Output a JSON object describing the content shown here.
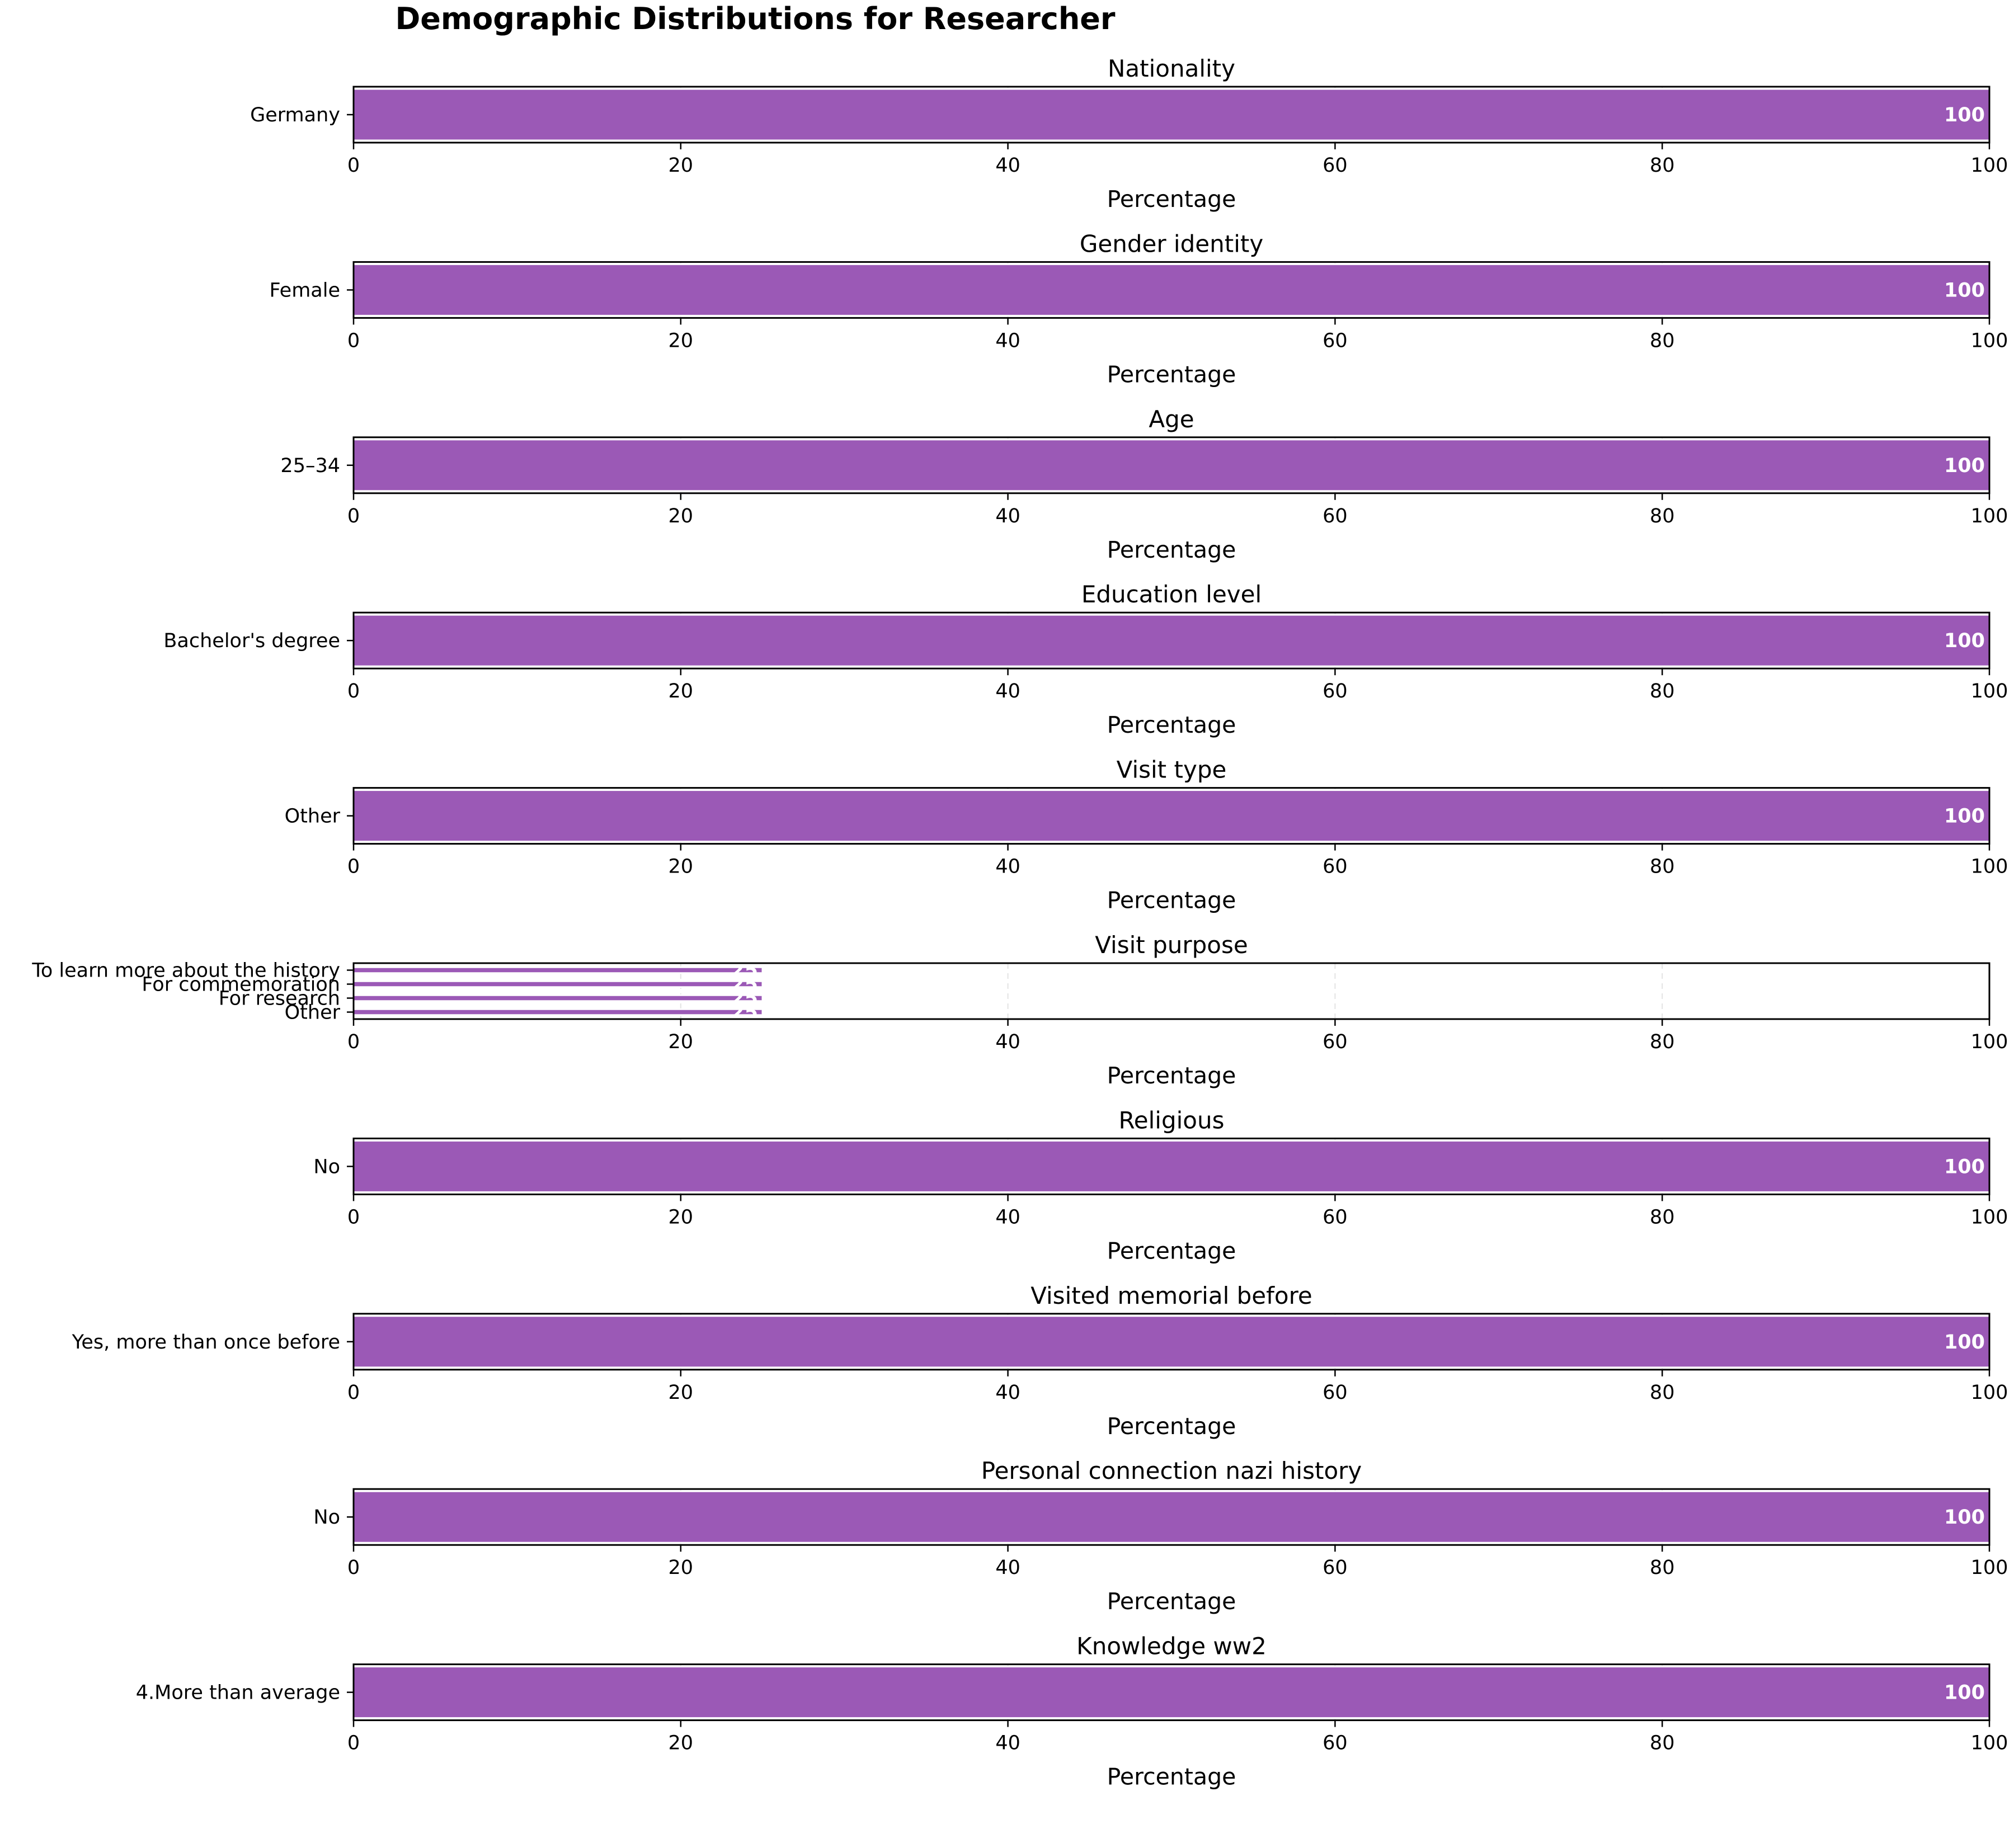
{
  "figure_title": "Demographic Distributions for Researcher",
  "colors": {
    "bar": "#9b59b6",
    "bar_label": "#ffffff",
    "grid": "#e3e3e3",
    "axis": "#000000"
  },
  "chart_data": [
    {
      "type": "bar",
      "orientation": "horizontal",
      "title": "Nationality",
      "xlabel": "Percentage",
      "categories": [
        "Germany"
      ],
      "values": [
        100
      ],
      "xlim": [
        0,
        100
      ],
      "xticks": [
        0,
        20,
        40,
        60,
        80,
        100
      ],
      "grid": "x, dashed"
    },
    {
      "type": "bar",
      "orientation": "horizontal",
      "title": "Gender identity",
      "xlabel": "Percentage",
      "categories": [
        "Female"
      ],
      "values": [
        100
      ],
      "xlim": [
        0,
        100
      ],
      "xticks": [
        0,
        20,
        40,
        60,
        80,
        100
      ],
      "grid": "x, dashed"
    },
    {
      "type": "bar",
      "orientation": "horizontal",
      "title": "Age",
      "xlabel": "Percentage",
      "categories": [
        "25–34"
      ],
      "values": [
        100
      ],
      "xlim": [
        0,
        100
      ],
      "xticks": [
        0,
        20,
        40,
        60,
        80,
        100
      ],
      "grid": "x, dashed"
    },
    {
      "type": "bar",
      "orientation": "horizontal",
      "title": "Education level",
      "xlabel": "Percentage",
      "categories": [
        "Bachelor's degree"
      ],
      "values": [
        100
      ],
      "xlim": [
        0,
        100
      ],
      "xticks": [
        0,
        20,
        40,
        60,
        80,
        100
      ],
      "grid": "x, dashed"
    },
    {
      "type": "bar",
      "orientation": "horizontal",
      "title": "Visit type",
      "xlabel": "Percentage",
      "categories": [
        "Other"
      ],
      "values": [
        100
      ],
      "xlim": [
        0,
        100
      ],
      "xticks": [
        0,
        20,
        40,
        60,
        80,
        100
      ],
      "grid": "x, dashed"
    },
    {
      "type": "bar",
      "orientation": "horizontal",
      "title": "Visit purpose",
      "xlabel": "Percentage",
      "categories": [
        "To learn more about the history",
        "For commemoration",
        "For research",
        "Other"
      ],
      "values": [
        25,
        25,
        25,
        25
      ],
      "xlim": [
        0,
        100
      ],
      "xticks": [
        0,
        20,
        40,
        60,
        80,
        100
      ],
      "grid": "x, dashed"
    },
    {
      "type": "bar",
      "orientation": "horizontal",
      "title": "Religious",
      "xlabel": "Percentage",
      "categories": [
        "No"
      ],
      "values": [
        100
      ],
      "xlim": [
        0,
        100
      ],
      "xticks": [
        0,
        20,
        40,
        60,
        80,
        100
      ],
      "grid": "x, dashed"
    },
    {
      "type": "bar",
      "orientation": "horizontal",
      "title": "Visited memorial before",
      "xlabel": "Percentage",
      "categories": [
        "Yes, more than once before"
      ],
      "values": [
        100
      ],
      "xlim": [
        0,
        100
      ],
      "xticks": [
        0,
        20,
        40,
        60,
        80,
        100
      ],
      "grid": "x, dashed"
    },
    {
      "type": "bar",
      "orientation": "horizontal",
      "title": "Personal connection nazi history",
      "xlabel": "Percentage",
      "categories": [
        "No"
      ],
      "values": [
        100
      ],
      "xlim": [
        0,
        100
      ],
      "xticks": [
        0,
        20,
        40,
        60,
        80,
        100
      ],
      "grid": "x, dashed"
    },
    {
      "type": "bar",
      "orientation": "horizontal",
      "title": "Knowledge ww2",
      "xlabel": "Percentage",
      "categories": [
        "4.More than average"
      ],
      "values": [
        100
      ],
      "xlim": [
        0,
        100
      ],
      "xticks": [
        0,
        20,
        40,
        60,
        80,
        100
      ],
      "grid": "x, dashed"
    }
  ]
}
